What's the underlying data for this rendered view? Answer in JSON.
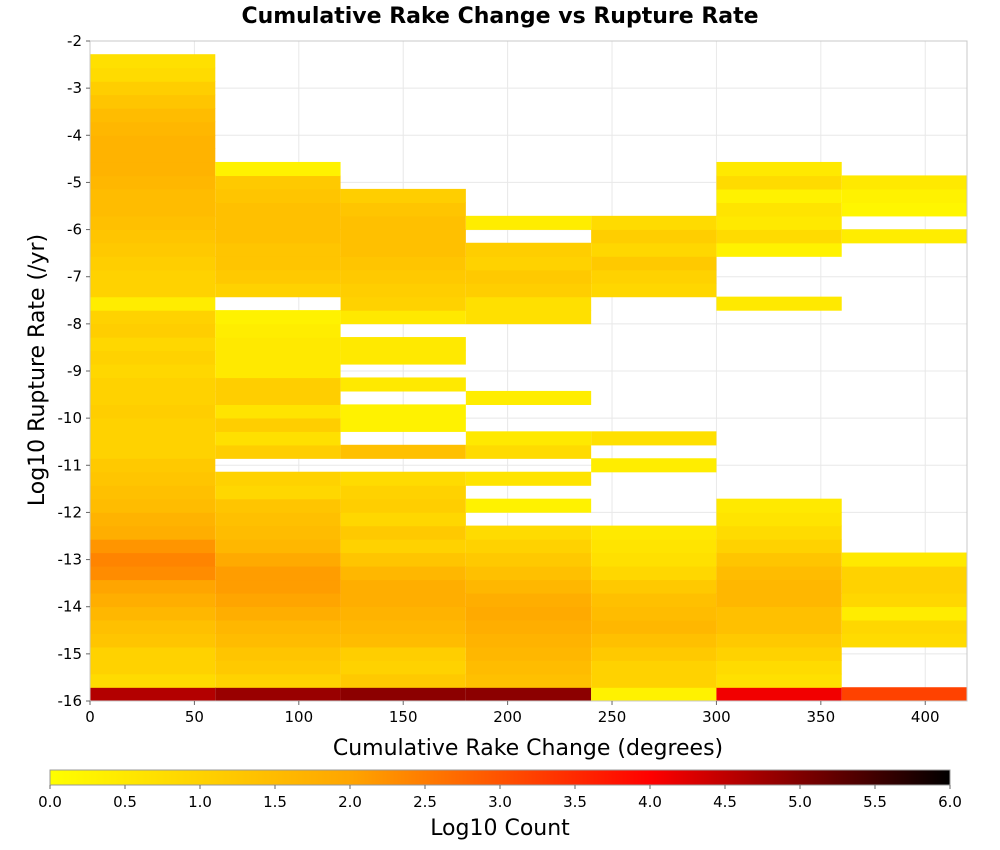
{
  "chart_data": {
    "type": "heatmap",
    "title": "Cumulative Rake Change vs Rupture Rate",
    "xlabel": "Cumulative Rake Change (degrees)",
    "ylabel": "Log10 Rupture Rate (/yr)",
    "xlim": [
      0,
      420
    ],
    "ylim": [
      -16,
      -2
    ],
    "xticks": [
      0,
      50,
      100,
      150,
      200,
      250,
      300,
      350,
      400
    ],
    "yticks": [
      -2,
      -3,
      -4,
      -5,
      -6,
      -7,
      -8,
      -9,
      -10,
      -11,
      -12,
      -13,
      -14,
      -15,
      -16
    ],
    "bin_x_width": 60,
    "bin_y_height": 0.2857,
    "grid": true,
    "colorbar": {
      "label": "Log10 Count",
      "range": [
        0,
        6
      ],
      "ticks": [
        "0.0",
        "0.5",
        "1.0",
        "1.5",
        "2.0",
        "2.5",
        "3.0",
        "3.5",
        "4.0",
        "4.5",
        "5.0",
        "5.5",
        "6.0"
      ],
      "placement": "bottom",
      "colors": [
        "#ffff00",
        "#ffa500",
        "#ff0000",
        "#000000"
      ]
    },
    "columns": [
      {
        "x_start": 0,
        "y_start": -16,
        "values": [
          4.6,
          0.8,
          1.0,
          1.0,
          1.3,
          1.4,
          1.6,
          1.8,
          2.0,
          2.3,
          2.4,
          2.2,
          1.8,
          1.7,
          1.5,
          1.4,
          1.3,
          1.2,
          1.0,
          1.0,
          1.0,
          1.1,
          1.0,
          1.0,
          0.9,
          1.0,
          0.9,
          1.1,
          1.0,
          0.4,
          1.0,
          1.0,
          1.1,
          1.2,
          1.3,
          1.4,
          1.5,
          1.5,
          1.6,
          1.7,
          1.7,
          1.7,
          1.6,
          1.5,
          1.3,
          1.1,
          0.8,
          0.7
        ]
      },
      {
        "x_start": 60,
        "y_start": -16,
        "values": [
          4.8,
          1.0,
          1.2,
          1.3,
          1.5,
          1.6,
          1.8,
          2.0,
          2.1,
          2.1,
          1.9,
          1.6,
          1.5,
          1.4,
          1.3,
          0.9,
          1.0,
          null,
          1.1,
          0.7,
          1.1,
          0.6,
          1.1,
          1.1,
          0.5,
          0.5,
          0.5,
          0.4,
          0.3,
          null,
          1.0,
          1.2,
          1.3,
          1.3,
          1.4,
          1.4,
          1.4,
          1.3,
          1.2,
          0.3
        ]
      },
      {
        "x_start": 120,
        "y_start": -16,
        "values": [
          4.9,
          1.2,
          1.0,
          1.1,
          1.5,
          1.6,
          1.7,
          1.8,
          1.8,
          1.6,
          1.3,
          1.0,
          1.2,
          0.9,
          1.1,
          1.0,
          0.8,
          null,
          1.4,
          null,
          0.3,
          0.3,
          null,
          0.5,
          null,
          0.5,
          0.5,
          null,
          0.5,
          1.0,
          1.1,
          1.2,
          1.3,
          1.4,
          1.4,
          1.4,
          1.3,
          1.1
        ]
      },
      {
        "x_start": 180,
        "y_start": -16,
        "values": [
          4.9,
          1.4,
          1.5,
          1.6,
          1.7,
          1.8,
          1.9,
          1.8,
          1.6,
          1.4,
          1.2,
          1.0,
          0.8,
          null,
          0.3,
          null,
          0.6,
          null,
          0.8,
          0.5,
          null,
          null,
          0.4,
          null,
          null,
          null,
          null,
          null,
          0.7,
          0.7,
          1.1,
          1.2,
          1.0,
          1.1,
          null,
          0.4
        ]
      },
      {
        "x_start": 240,
        "y_start": -16,
        "values": [
          0.3,
          1.0,
          1.0,
          1.2,
          1.4,
          1.6,
          1.5,
          1.4,
          1.2,
          0.9,
          0.7,
          0.6,
          0.5,
          null,
          null,
          null,
          null,
          0.4,
          null,
          0.7,
          null,
          null,
          null,
          null,
          null,
          null,
          null,
          null,
          null,
          null,
          0.9,
          1.0,
          1.2,
          0.9,
          1.1,
          0.8
        ]
      },
      {
        "x_start": 300,
        "y_start": -16,
        "values": [
          4.1,
          0.7,
          0.8,
          1.0,
          1.2,
          1.4,
          1.4,
          1.6,
          1.6,
          1.5,
          1.3,
          1.0,
          0.8,
          0.6,
          0.5,
          null,
          null,
          null,
          null,
          null,
          null,
          null,
          null,
          null,
          null,
          null,
          null,
          null,
          null,
          0.5,
          null,
          null,
          null,
          0.3,
          0.8,
          0.5,
          0.6,
          0.3,
          0.8,
          0.5
        ]
      },
      {
        "x_start": 360,
        "y_start": -16,
        "values": [
          3.2,
          null,
          null,
          null,
          0.8,
          0.9,
          0.4,
          0.9,
          1.0,
          1.0,
          0.5,
          null,
          null,
          null,
          null,
          null,
          null,
          null,
          null,
          null,
          null,
          null,
          null,
          null,
          null,
          null,
          null,
          null,
          null,
          null,
          null,
          null,
          null,
          null,
          0.4,
          null,
          0.2,
          0.3,
          0.5
        ]
      }
    ]
  }
}
